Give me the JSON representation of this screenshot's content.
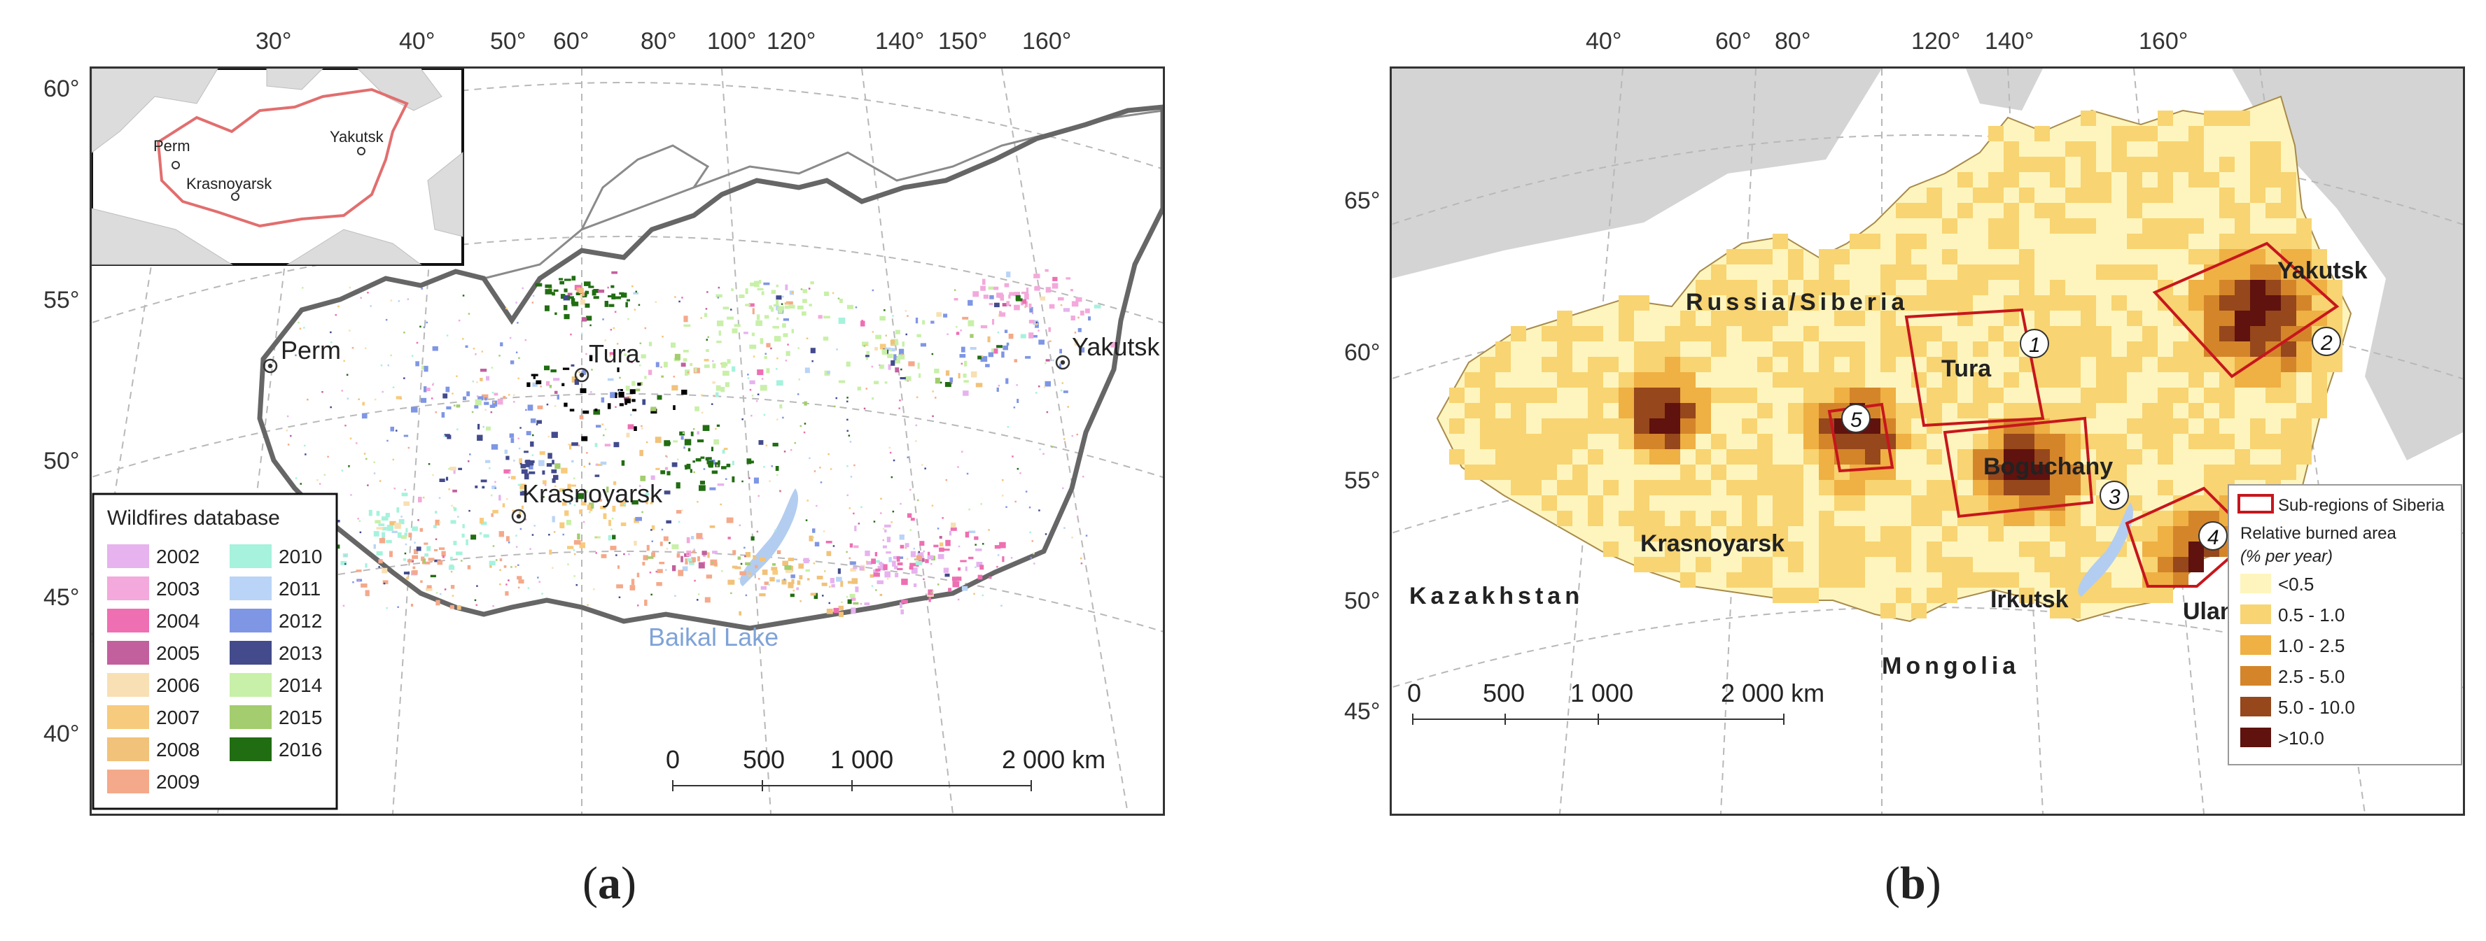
{
  "panel_a": {
    "caption_open": "(",
    "caption_letter": "a",
    "caption_close": ")",
    "lon_labels": [
      "30°",
      "40°",
      "50°",
      "60°",
      "80°",
      "100°",
      "120°",
      "140°",
      "150°",
      "160°"
    ],
    "lat_labels": [
      "60°",
      "55°",
      "50°",
      "45°",
      "40°"
    ],
    "places": {
      "perm": "Perm",
      "tura": "Tura",
      "yakutsk": "Yakutsk",
      "krasnoyarsk": "Krasnoyarsk",
      "baikal": "Baikal Lake"
    },
    "inset": {
      "perm": "Perm",
      "yakutsk": "Yakutsk",
      "krasnoyarsk": "Krasnoyarsk"
    },
    "legend": {
      "title": "Wildfires database",
      "items": [
        {
          "year": "2002",
          "color": "#e6b3ee"
        },
        {
          "year": "2003",
          "color": "#f3a9db"
        },
        {
          "year": "2004",
          "color": "#ee6fb2"
        },
        {
          "year": "2005",
          "color": "#c2609e"
        },
        {
          "year": "2006",
          "color": "#f8e0b4"
        },
        {
          "year": "2007",
          "color": "#f7cb7d"
        },
        {
          "year": "2008",
          "color": "#f1c27a"
        },
        {
          "year": "2009",
          "color": "#f4a98a"
        },
        {
          "year": "2010",
          "color": "#a6f2dc"
        },
        {
          "year": "2011",
          "color": "#b9d4f6"
        },
        {
          "year": "2012",
          "color": "#7f96e4"
        },
        {
          "year": "2013",
          "color": "#434b8c"
        },
        {
          "year": "2014",
          "color": "#c8f0a8"
        },
        {
          "year": "2015",
          "color": "#a3cd6e"
        },
        {
          "year": "2016",
          "color": "#216d12"
        }
      ]
    },
    "scale": {
      "t0": "0",
      "t1": "500",
      "t2": "1 000",
      "t3": "2 000 km"
    }
  },
  "panel_b": {
    "caption_open": "(",
    "caption_letter": "b",
    "caption_close": ")",
    "lon_labels": [
      "40°",
      "60°",
      "80°",
      "120°",
      "140°",
      "160°"
    ],
    "lat_labels": [
      "65°",
      "60°",
      "55°",
      "50°",
      "45°"
    ],
    "places": {
      "russia": "Russia/Siberia",
      "tura": "Tura",
      "yakutsk": "Yakutsk",
      "boguchany": "Boguchany",
      "krasnoyarsk": "Krasnoyarsk",
      "irkutsk": "Irkutsk",
      "ulanude": "Ulan-Ude",
      "kazakhstan": "Kazakhstan",
      "mongolia": "Mongolia"
    },
    "subregions": [
      "1",
      "2",
      "3",
      "4",
      "5"
    ],
    "legend": {
      "frame_label": "Sub-regions of Siberia",
      "title": "Relative burned area",
      "unit": "(% per year)",
      "items": [
        {
          "label": "<0.5",
          "color": "#fdf5bd"
        },
        {
          "label": "0.5 - 1.0",
          "color": "#f8d472"
        },
        {
          "label": "1.0 - 2.5",
          "color": "#efb044"
        },
        {
          "label": "2.5 - 5.0",
          "color": "#d4852a"
        },
        {
          "label": "5.0 - 10.0",
          "color": "#96471b"
        },
        {
          "label": ">10.0",
          "color": "#5f120e"
        }
      ]
    },
    "scale": {
      "t0": "0",
      "t1": "500",
      "t2": "1 000",
      "t3": "2 000 km"
    }
  }
}
